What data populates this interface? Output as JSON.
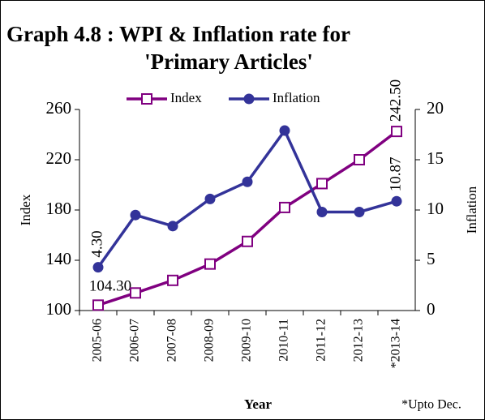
{
  "chart_data": {
    "type": "line",
    "title": [
      "Graph 4.8 :  WPI & Inflation rate for",
      "'Primary Articles'"
    ],
    "x_label": "Year",
    "y_label": "Index",
    "y2_label": "Inflation",
    "note": "*Upto Dec.",
    "categories": [
      "2005-06",
      "2006-07",
      "2007-08",
      "2008-09",
      "2009-10",
      "2010-11",
      "2011-12",
      "2012-13",
      "*2013-14"
    ],
    "ylim": [
      100,
      260
    ],
    "yticks": [
      100,
      140,
      180,
      220,
      260
    ],
    "y2lim": [
      0,
      20
    ],
    "y2ticks": [
      0,
      5,
      10,
      15,
      20
    ],
    "legend": "top",
    "series": [
      {
        "name": "Index",
        "color": "#800080",
        "marker": "square",
        "values": [
          104.3,
          114,
          124,
          137,
          155,
          182,
          201,
          220,
          242.5
        ],
        "value_labels": [
          "104.30",
          null,
          null,
          null,
          null,
          null,
          null,
          null,
          "242.50"
        ]
      },
      {
        "name": "Inflation",
        "color": "#333399",
        "marker": "circle",
        "axis": "y2",
        "values": [
          4.3,
          9.5,
          8.4,
          11.1,
          12.8,
          17.9,
          9.8,
          9.8,
          10.87
        ],
        "value_labels": [
          "4.30",
          null,
          null,
          null,
          null,
          null,
          null,
          null,
          "10.87"
        ]
      }
    ]
  }
}
